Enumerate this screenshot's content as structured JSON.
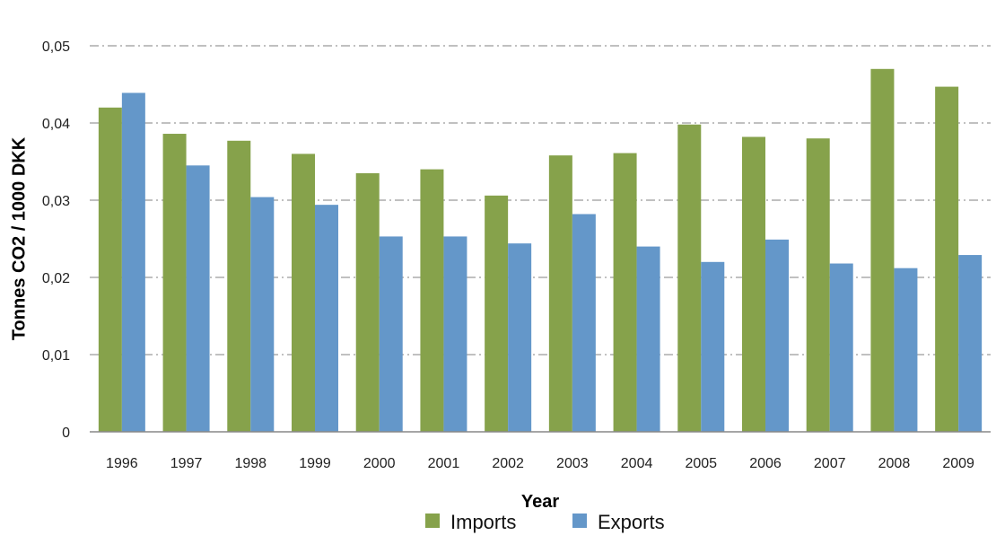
{
  "chart_data": {
    "type": "bar",
    "title": "",
    "xlabel": "Year",
    "ylabel": "Tonnes CO2 / 1000 DKK",
    "categories": [
      "1996",
      "1997",
      "1998",
      "1999",
      "2000",
      "2001",
      "2002",
      "2003",
      "2004",
      "2005",
      "2006",
      "2007",
      "2008",
      "2009"
    ],
    "series": [
      {
        "name": "Imports",
        "color": "#86A24B",
        "values": [
          0.042,
          0.0386,
          0.0377,
          0.036,
          0.0335,
          0.034,
          0.0306,
          0.0358,
          0.0361,
          0.0398,
          0.0382,
          0.038,
          0.047,
          0.0447
        ]
      },
      {
        "name": "Exports",
        "color": "#6497C9",
        "values": [
          0.0439,
          0.0345,
          0.0304,
          0.0294,
          0.0253,
          0.0253,
          0.0244,
          0.0282,
          0.024,
          0.022,
          0.0249,
          0.0218,
          0.0212,
          0.0229
        ]
      }
    ],
    "ylim": [
      0,
      0.05
    ],
    "yticks": [
      0,
      0.01,
      0.02,
      0.03,
      0.04,
      0.05
    ],
    "ytick_labels": [
      "0",
      "0,01",
      "0,02",
      "0,03",
      "0,04",
      "0,05"
    ],
    "grid": true,
    "grid_style": "dash-dot",
    "legend_position": "bottom"
  }
}
